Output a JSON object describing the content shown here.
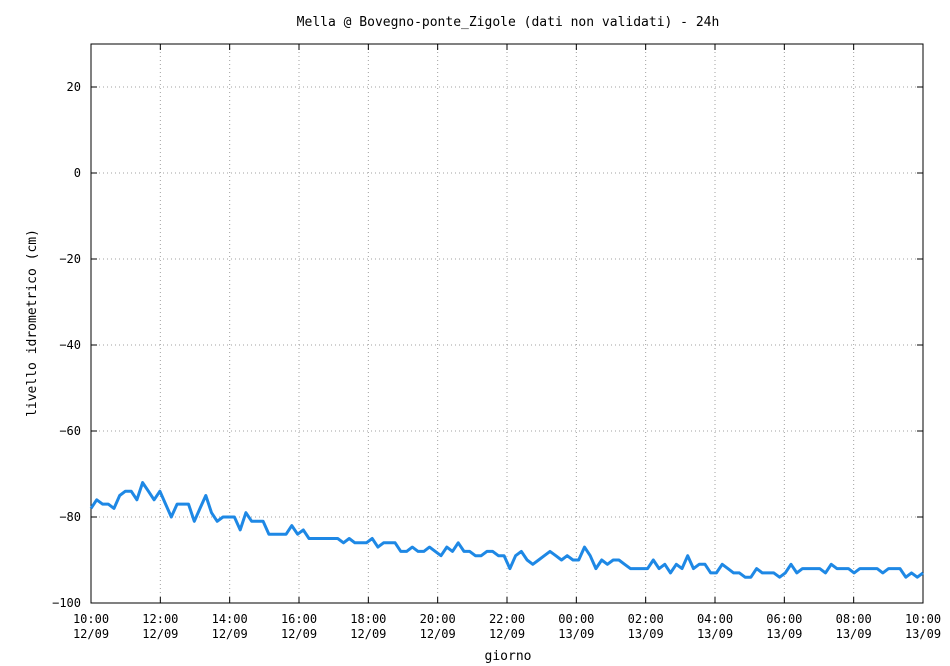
{
  "chart_data": {
    "type": "line",
    "title": "Mella @ Bovegno-ponte_Zigole (dati non validati) - 24h",
    "xlabel": "giorno",
    "ylabel": "livello idrometrico (cm)",
    "ylim": [
      -100,
      30
    ],
    "yticks": [
      20,
      0,
      -20,
      -40,
      -60,
      -80,
      -100
    ],
    "ytick_labels": [
      "20",
      "0",
      "−20",
      "−40",
      "−60",
      "−80",
      "−100"
    ],
    "xlim_hours": [
      0,
      24
    ],
    "xticks": [
      {
        "time": "10:00",
        "date": "12/09"
      },
      {
        "time": "12:00",
        "date": "12/09"
      },
      {
        "time": "14:00",
        "date": "12/09"
      },
      {
        "time": "16:00",
        "date": "12/09"
      },
      {
        "time": "18:00",
        "date": "12/09"
      },
      {
        "time": "20:00",
        "date": "12/09"
      },
      {
        "time": "22:00",
        "date": "12/09"
      },
      {
        "time": "00:00",
        "date": "13/09"
      },
      {
        "time": "02:00",
        "date": "13/09"
      },
      {
        "time": "04:00",
        "date": "13/09"
      },
      {
        "time": "06:00",
        "date": "13/09"
      },
      {
        "time": "08:00",
        "date": "13/09"
      },
      {
        "time": "10:00",
        "date": "13/09"
      }
    ],
    "grid": true,
    "series": [
      {
        "color": "#1e88e5",
        "points": [
          [
            0.0,
            -78
          ],
          [
            0.2,
            -76
          ],
          [
            0.4,
            -77
          ],
          [
            0.6,
            -77
          ],
          [
            0.8,
            -78
          ],
          [
            1.0,
            -75
          ],
          [
            1.2,
            -74
          ],
          [
            1.4,
            -74
          ],
          [
            1.6,
            -76
          ],
          [
            1.8,
            -72
          ],
          [
            2.0,
            -74
          ],
          [
            2.2,
            -76
          ],
          [
            2.4,
            -74
          ],
          [
            2.6,
            -77
          ],
          [
            2.8,
            -80
          ],
          [
            3.0,
            -77
          ],
          [
            3.2,
            -77
          ],
          [
            3.4,
            -77
          ],
          [
            3.6,
            -81
          ],
          [
            3.8,
            -78
          ],
          [
            4.0,
            -75
          ],
          [
            4.2,
            -79
          ],
          [
            4.4,
            -81
          ],
          [
            4.6,
            -80
          ],
          [
            4.8,
            -80
          ],
          [
            5.0,
            -80
          ],
          [
            5.2,
            -83
          ],
          [
            5.4,
            -79
          ],
          [
            5.6,
            -81
          ],
          [
            5.8,
            -81
          ],
          [
            6.0,
            -81
          ],
          [
            6.2,
            -84
          ],
          [
            6.4,
            -84
          ],
          [
            6.6,
            -84
          ],
          [
            6.8,
            -84
          ],
          [
            7.0,
            -82
          ],
          [
            7.2,
            -84
          ],
          [
            7.4,
            -83
          ],
          [
            7.6,
            -85
          ],
          [
            7.8,
            -85
          ],
          [
            8.0,
            -85
          ],
          [
            8.2,
            -85
          ],
          [
            8.4,
            -85
          ],
          [
            8.6,
            -85
          ],
          [
            8.8,
            -86
          ],
          [
            9.0,
            -85
          ],
          [
            9.2,
            -86
          ],
          [
            9.4,
            -86
          ],
          [
            9.6,
            -86
          ],
          [
            9.8,
            -85
          ],
          [
            10.0,
            -87
          ],
          [
            10.2,
            -86
          ],
          [
            10.4,
            -86
          ],
          [
            10.6,
            -86
          ],
          [
            10.8,
            -88
          ],
          [
            11.0,
            -88
          ],
          [
            11.2,
            -87
          ],
          [
            11.4,
            -88
          ],
          [
            11.6,
            -88
          ],
          [
            11.8,
            -87
          ],
          [
            12.0,
            -88
          ],
          [
            12.2,
            -89
          ],
          [
            12.4,
            -87
          ],
          [
            12.6,
            -88
          ],
          [
            12.8,
            -86
          ],
          [
            13.0,
            -88
          ],
          [
            13.2,
            -88
          ],
          [
            13.4,
            -89
          ],
          [
            13.6,
            -89
          ],
          [
            13.8,
            -88
          ],
          [
            14.0,
            -88
          ],
          [
            14.2,
            -89
          ],
          [
            14.4,
            -89
          ],
          [
            14.6,
            -92
          ],
          [
            14.8,
            -89
          ],
          [
            15.0,
            -88
          ],
          [
            15.2,
            -90
          ],
          [
            15.4,
            -91
          ],
          [
            15.6,
            -90
          ],
          [
            15.8,
            -89
          ],
          [
            16.0,
            -88
          ],
          [
            16.2,
            -89
          ],
          [
            16.4,
            -90
          ],
          [
            16.6,
            -89
          ],
          [
            16.8,
            -90
          ],
          [
            17.0,
            -90
          ],
          [
            17.2,
            -87
          ],
          [
            17.4,
            -89
          ],
          [
            17.6,
            -92
          ],
          [
            17.8,
            -90
          ],
          [
            18.0,
            -91
          ],
          [
            18.2,
            -90
          ],
          [
            18.4,
            -90
          ],
          [
            18.6,
            -91
          ],
          [
            18.8,
            -92
          ],
          [
            19.0,
            -92
          ],
          [
            19.2,
            -92
          ],
          [
            19.4,
            -92
          ],
          [
            19.6,
            -90
          ],
          [
            19.8,
            -92
          ],
          [
            20.0,
            -91
          ],
          [
            20.2,
            -93
          ],
          [
            20.4,
            -91
          ],
          [
            20.6,
            -92
          ],
          [
            20.8,
            -89
          ],
          [
            21.0,
            -92
          ],
          [
            21.2,
            -91
          ],
          [
            21.4,
            -91
          ],
          [
            21.6,
            -93
          ],
          [
            21.8,
            -93
          ],
          [
            22.0,
            -91
          ],
          [
            22.2,
            -92
          ],
          [
            22.4,
            -93
          ],
          [
            22.6,
            -93
          ],
          [
            22.8,
            -94
          ],
          [
            23.0,
            -94
          ],
          [
            23.2,
            -92
          ],
          [
            23.4,
            -93
          ],
          [
            23.6,
            -93
          ],
          [
            23.8,
            -93
          ],
          [
            24.0,
            -94
          ],
          [
            24.2,
            -93
          ],
          [
            24.4,
            -91
          ],
          [
            24.6,
            -93
          ],
          [
            24.8,
            -92
          ],
          [
            25.0,
            -92
          ],
          [
            25.2,
            -92
          ],
          [
            25.4,
            -92
          ],
          [
            25.6,
            -93
          ],
          [
            25.8,
            -91
          ],
          [
            26.0,
            -92
          ],
          [
            26.2,
            -92
          ],
          [
            26.4,
            -92
          ],
          [
            26.6,
            -93
          ],
          [
            26.8,
            -92
          ],
          [
            27.0,
            -92
          ],
          [
            27.2,
            -92
          ],
          [
            27.4,
            -92
          ],
          [
            27.6,
            -93
          ],
          [
            27.8,
            -92
          ],
          [
            28.0,
            -92
          ],
          [
            28.2,
            -92
          ],
          [
            28.4,
            -94
          ],
          [
            28.6,
            -93
          ],
          [
            28.8,
            -94
          ],
          [
            29.0,
            -93
          ]
        ]
      }
    ]
  }
}
